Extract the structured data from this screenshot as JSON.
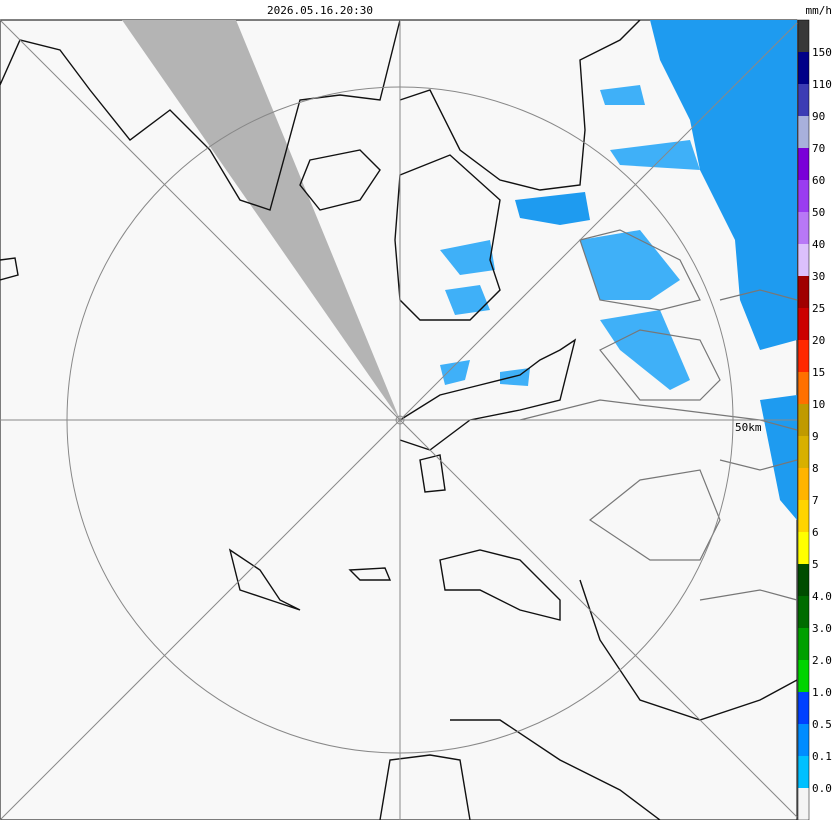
{
  "header": {
    "timestamp": "2026.05.16.20:30",
    "unit": "mm/h"
  },
  "map": {
    "range_label": "50km"
  },
  "legend": {
    "colors": [
      "#383838",
      "#000088",
      "#3c3cb4",
      "#a8b0dc",
      "#7a00d8",
      "#9a3cf0",
      "#b878f6",
      "#dcc0fc",
      "#a00000",
      "#cc0000",
      "#ff2800",
      "#ff7000",
      "#c09a00",
      "#d8b000",
      "#ffb400",
      "#ffd400",
      "#ffff00",
      "#004c00",
      "#006c00",
      "#00a000",
      "#00d400",
      "#0040ff",
      "#008cff",
      "#00c0ff",
      "#f4f4f4"
    ],
    "labels": [
      "150",
      "110",
      "90",
      "70",
      "60",
      "50",
      "40",
      "30",
      "25",
      "20",
      "15",
      "10",
      "9",
      "8",
      "7",
      "6",
      "5",
      "4.0",
      "3.0",
      "2.0",
      "1.0",
      "0.5",
      "0.1",
      "0.0"
    ]
  }
}
